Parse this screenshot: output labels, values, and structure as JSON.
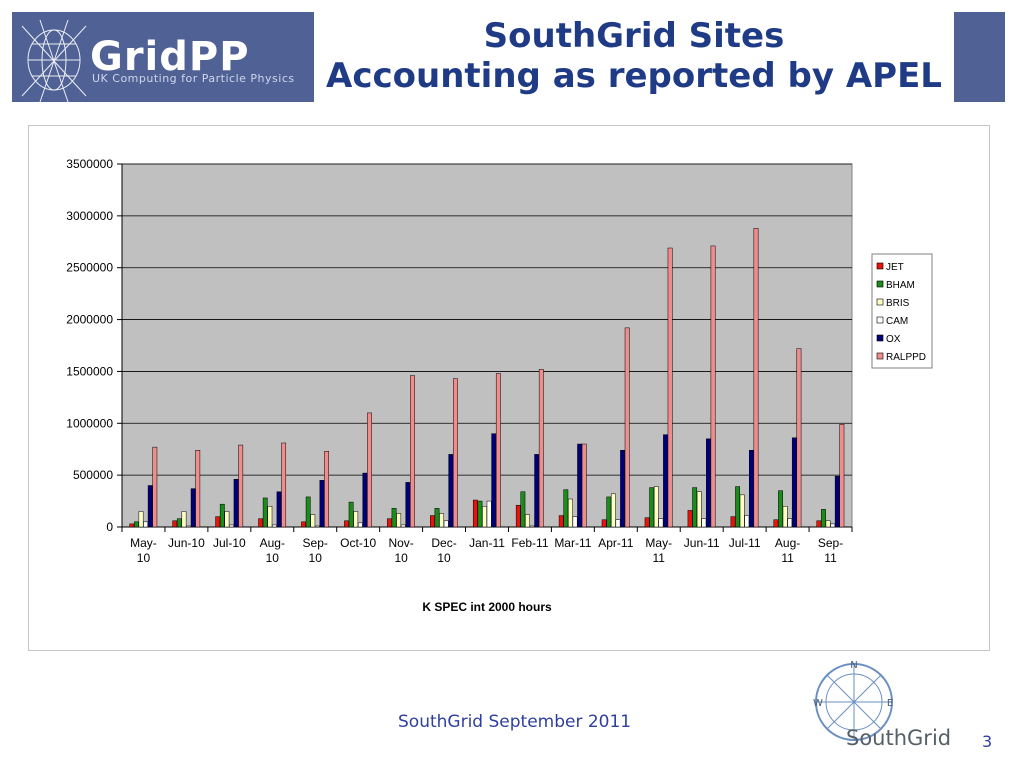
{
  "header": {
    "logo_text": "GridPP",
    "logo_tagline": "UK Computing for Particle Physics",
    "title_line1": "SouthGrid Sites",
    "title_line2": "Accounting as reported by APEL",
    "background_color": "#506196",
    "title_color": "#1f3b86"
  },
  "chart_data": {
    "type": "bar",
    "xlabel": "K SPEC int 2000 hours",
    "ylabel": "",
    "ylim": [
      0,
      3500000
    ],
    "yticks": [
      0,
      500000,
      1000000,
      1500000,
      2000000,
      2500000,
      3000000,
      3500000
    ],
    "ytick_labels": [
      "0",
      "500000",
      "1000000",
      "1500000",
      "2000000",
      "2500000",
      "3000000",
      "3500000"
    ],
    "plot_background": "#c0c0c0",
    "grid": "horizontal",
    "legend_position": "right",
    "categories": [
      "May-10",
      "Jun-10",
      "Jul-10",
      "Aug-10",
      "Sep-10",
      "Oct-10",
      "Nov-10",
      "Dec-10",
      "Jan-11",
      "Feb-11",
      "Mar-11",
      "Apr-11",
      "May-11",
      "Jun-11",
      "Jul-11",
      "Aug-11",
      "Sep-11"
    ],
    "category_labels": [
      [
        "May-",
        "10"
      ],
      [
        "Jun-10"
      ],
      [
        "Jul-10"
      ],
      [
        "Aug-",
        "10"
      ],
      [
        "Sep-",
        "10"
      ],
      [
        "Oct-10"
      ],
      [
        "Nov-",
        "10"
      ],
      [
        "Dec-",
        "10"
      ],
      [
        "Jan-11"
      ],
      [
        "Feb-11"
      ],
      [
        "Mar-11"
      ],
      [
        "Apr-11"
      ],
      [
        "May-",
        "11"
      ],
      [
        "Jun-11"
      ],
      [
        "Jul-11"
      ],
      [
        "Aug-",
        "11"
      ],
      [
        "Sep-",
        "11"
      ]
    ],
    "series": [
      {
        "name": "JET",
        "color": "#e8140c",
        "values": [
          30000,
          60000,
          100000,
          80000,
          50000,
          60000,
          80000,
          110000,
          260000,
          210000,
          110000,
          70000,
          90000,
          160000,
          100000,
          70000,
          60000
        ]
      },
      {
        "name": "BHAM",
        "color": "#1a8c1a",
        "values": [
          50000,
          80000,
          220000,
          280000,
          290000,
          240000,
          180000,
          180000,
          250000,
          340000,
          360000,
          290000,
          380000,
          380000,
          390000,
          350000,
          170000
        ]
      },
      {
        "name": "BRIS",
        "color": "#ffffc4",
        "values": [
          150000,
          150000,
          150000,
          200000,
          120000,
          150000,
          130000,
          130000,
          200000,
          120000,
          270000,
          320000,
          390000,
          340000,
          310000,
          200000,
          60000
        ]
      },
      {
        "name": "CAM",
        "color": "#ffffff",
        "values": [
          50000,
          10000,
          20000,
          20000,
          10000,
          40000,
          20000,
          60000,
          250000,
          10000,
          100000,
          70000,
          80000,
          80000,
          110000,
          80000,
          30000
        ]
      },
      {
        "name": "OX",
        "color": "#00007a",
        "values": [
          400000,
          370000,
          460000,
          340000,
          450000,
          520000,
          430000,
          700000,
          900000,
          700000,
          800000,
          740000,
          890000,
          850000,
          740000,
          860000,
          490000
        ]
      },
      {
        "name": "RALPPD",
        "color": "#f08c8c",
        "values": [
          770000,
          740000,
          790000,
          810000,
          730000,
          1100000,
          1460000,
          1430000,
          1480000,
          1520000,
          800000,
          1920000,
          2690000,
          2710000,
          2880000,
          1720000,
          990000
        ]
      }
    ]
  },
  "footer": {
    "text": "SouthGrid September 2011",
    "logo_text": "SouthGrid",
    "compass_labels": {
      "n": "N",
      "e": "E",
      "w": "W"
    },
    "page_number": "3"
  }
}
